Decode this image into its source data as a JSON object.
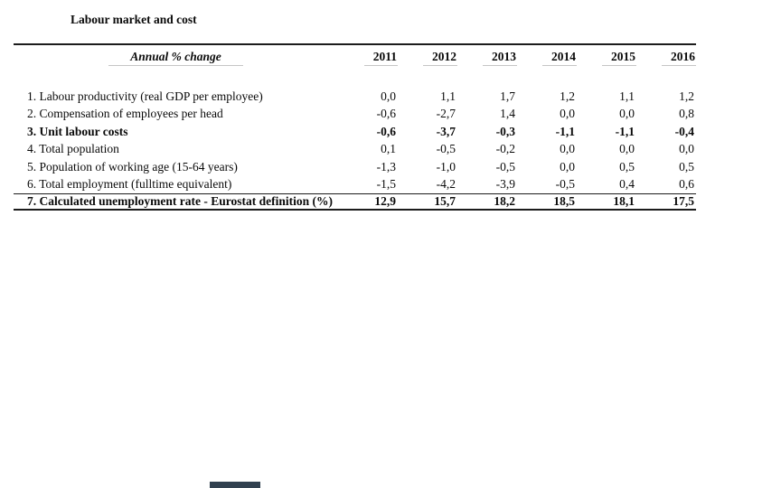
{
  "title": "Labour market and cost",
  "table": {
    "header": {
      "label": "Annual % change",
      "years": [
        "2011",
        "2012",
        "2013",
        "2014",
        "2015",
        "2016"
      ]
    },
    "rows": [
      {
        "label": "1. Labour productivity (real GDP per employee)",
        "bold": false,
        "values": [
          "0,0",
          "1,1",
          "1,7",
          "1,2",
          "1,1",
          "1,2"
        ]
      },
      {
        "label": "2. Compensation of employees per head",
        "bold": false,
        "values": [
          "-0,6",
          "-2,7",
          "1,4",
          "0,0",
          "0,0",
          "0,8"
        ]
      },
      {
        "label": "3. Unit labour costs",
        "bold": true,
        "values": [
          "-0,6",
          "-3,7",
          "-0,3",
          "-1,1",
          "-1,1",
          "-0,4"
        ]
      },
      {
        "label": "4. Total population",
        "bold": false,
        "values": [
          "0,1",
          "-0,5",
          "-0,2",
          "0,0",
          "0,0",
          "0,0"
        ]
      },
      {
        "label": "5. Population of working age (15-64 years)",
        "bold": false,
        "values": [
          "-1,3",
          "-1,0",
          "-0,5",
          "0,0",
          "0,5",
          "0,5"
        ]
      },
      {
        "label": "6. Total employment (fulltime equivalent)",
        "bold": false,
        "values": [
          "-1,5",
          "-4,2",
          "-3,9",
          "-0,5",
          "0,4",
          "0,6"
        ]
      },
      {
        "label": "7. Calculated unemployment rate - Eurostat definition (%)",
        "bold": true,
        "values": [
          "12,9",
          "15,7",
          "18,2",
          "18,5",
          "18,1",
          "17,5"
        ]
      }
    ]
  },
  "colors": {
    "text": "#0a0a0a",
    "rule": "#1c1c1c",
    "faint_rule": "#c6c6c6",
    "bottom_fragment": "#31404f"
  }
}
